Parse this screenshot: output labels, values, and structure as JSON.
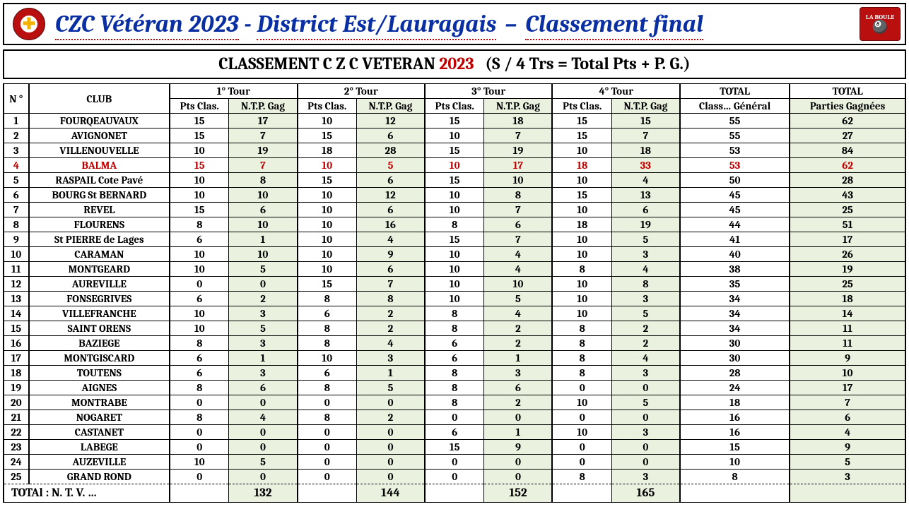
{
  "header": {
    "title_seg1": "CZC Vétéran 2023",
    "title_seg2": "District Est/Lauragais",
    "title_seg3": "Classement final",
    "dash": "–"
  },
  "banner": {
    "prefix": "CLASSEMENT  C Z C  VETERAN",
    "year": "2023",
    "suffix": "(S / 4 Trs  = Total  Pts  + P. G.)"
  },
  "columns": {
    "n": "N °",
    "club": "CLUB",
    "tours": [
      "1° Tour",
      "2° Tour",
      "3° Tour",
      "4° Tour"
    ],
    "pts": "Pts  Clas.",
    "ntp": "N.T.P. Gag",
    "total_class": "TOTAL",
    "total_class_sub": "Class…  Général",
    "total_pg": "TOTAL",
    "total_pg_sub": "Parties  Gagnées"
  },
  "rows": [
    {
      "n": "1",
      "club": "FOURQEAUVAUX",
      "t": [
        [
          15,
          17
        ],
        [
          10,
          12
        ],
        [
          15,
          18
        ],
        [
          15,
          15
        ]
      ],
      "cls": 55,
      "pg": 62
    },
    {
      "n": "2",
      "club": "AVIGNONET",
      "t": [
        [
          15,
          7
        ],
        [
          15,
          6
        ],
        [
          10,
          7
        ],
        [
          15,
          7
        ]
      ],
      "cls": 55,
      "pg": 27
    },
    {
      "n": "3",
      "club": "VILLENOUVELLE",
      "t": [
        [
          10,
          19
        ],
        [
          18,
          28
        ],
        [
          15,
          19
        ],
        [
          10,
          18
        ]
      ],
      "cls": 53,
      "pg": 84
    },
    {
      "n": "4",
      "club": "BALMA",
      "highlight": true,
      "t": [
        [
          15,
          7
        ],
        [
          10,
          5
        ],
        [
          10,
          17
        ],
        [
          18,
          33
        ]
      ],
      "cls": 53,
      "pg": 62
    },
    {
      "n": "5",
      "club": "RASPAIL Cote Pavé",
      "t": [
        [
          10,
          8
        ],
        [
          15,
          6
        ],
        [
          15,
          10
        ],
        [
          10,
          4
        ]
      ],
      "cls": 50,
      "pg": 28
    },
    {
      "n": "6",
      "club": "BOURG St BERNARD",
      "t": [
        [
          10,
          10
        ],
        [
          10,
          12
        ],
        [
          10,
          8
        ],
        [
          15,
          13
        ]
      ],
      "cls": 45,
      "pg": 43
    },
    {
      "n": "7",
      "club": "REVEL",
      "t": [
        [
          15,
          6
        ],
        [
          10,
          6
        ],
        [
          10,
          7
        ],
        [
          10,
          6
        ]
      ],
      "cls": 45,
      "pg": 25
    },
    {
      "n": "8",
      "club": "FLOURENS",
      "t": [
        [
          8,
          10
        ],
        [
          10,
          16
        ],
        [
          8,
          6
        ],
        [
          18,
          19
        ]
      ],
      "cls": 44,
      "pg": 51
    },
    {
      "n": "9",
      "club": "St PIERRE de Lages",
      "t": [
        [
          6,
          1
        ],
        [
          10,
          4
        ],
        [
          15,
          7
        ],
        [
          10,
          5
        ]
      ],
      "cls": 41,
      "pg": 17
    },
    {
      "n": "10",
      "club": "CARAMAN",
      "t": [
        [
          10,
          10
        ],
        [
          10,
          9
        ],
        [
          10,
          4
        ],
        [
          10,
          3
        ]
      ],
      "cls": 40,
      "pg": 26
    },
    {
      "n": "11",
      "club": "MONTGEARD",
      "t": [
        [
          10,
          5
        ],
        [
          10,
          6
        ],
        [
          10,
          4
        ],
        [
          8,
          4
        ]
      ],
      "cls": 38,
      "pg": 19
    },
    {
      "n": "12",
      "club": "AUREVILLE",
      "t": [
        [
          0,
          0
        ],
        [
          15,
          7
        ],
        [
          10,
          10
        ],
        [
          10,
          8
        ]
      ],
      "cls": 35,
      "pg": 25
    },
    {
      "n": "13",
      "club": "FONSEGRIVES",
      "t": [
        [
          6,
          2
        ],
        [
          8,
          8
        ],
        [
          10,
          5
        ],
        [
          10,
          3
        ]
      ],
      "cls": 34,
      "pg": 18
    },
    {
      "n": "14",
      "club": "VILLEFRANCHE",
      "t": [
        [
          10,
          3
        ],
        [
          6,
          2
        ],
        [
          8,
          4
        ],
        [
          10,
          5
        ]
      ],
      "cls": 34,
      "pg": 14
    },
    {
      "n": "15",
      "club": "SAINT  ORENS",
      "t": [
        [
          10,
          5
        ],
        [
          8,
          2
        ],
        [
          8,
          2
        ],
        [
          8,
          2
        ]
      ],
      "cls": 34,
      "pg": 11
    },
    {
      "n": "16",
      "club": "BAZIEGE",
      "t": [
        [
          8,
          3
        ],
        [
          8,
          4
        ],
        [
          6,
          2
        ],
        [
          8,
          2
        ]
      ],
      "cls": 30,
      "pg": 11
    },
    {
      "n": "17",
      "club": "MONTGISCARD",
      "t": [
        [
          6,
          1
        ],
        [
          10,
          3
        ],
        [
          6,
          1
        ],
        [
          8,
          4
        ]
      ],
      "cls": 30,
      "pg": 9
    },
    {
      "n": "18",
      "club": "TOUTENS",
      "t": [
        [
          6,
          3
        ],
        [
          6,
          1
        ],
        [
          8,
          3
        ],
        [
          8,
          3
        ]
      ],
      "cls": 28,
      "pg": 10
    },
    {
      "n": "19",
      "club": "AIGNES",
      "t": [
        [
          8,
          6
        ],
        [
          8,
          5
        ],
        [
          8,
          6
        ],
        [
          0,
          0
        ]
      ],
      "cls": 24,
      "pg": 17
    },
    {
      "n": "20",
      "club": "MONTRABE",
      "t": [
        [
          0,
          0
        ],
        [
          0,
          0
        ],
        [
          8,
          2
        ],
        [
          10,
          5
        ]
      ],
      "cls": 18,
      "pg": 7
    },
    {
      "n": "21",
      "club": "NOGARET",
      "t": [
        [
          8,
          4
        ],
        [
          8,
          2
        ],
        [
          0,
          0
        ],
        [
          0,
          0
        ]
      ],
      "cls": 16,
      "pg": 6
    },
    {
      "n": "22",
      "club": "CASTANET",
      "t": [
        [
          0,
          0
        ],
        [
          0,
          0
        ],
        [
          6,
          1
        ],
        [
          10,
          3
        ]
      ],
      "cls": 16,
      "pg": 4
    },
    {
      "n": "23",
      "club": "LABEGE",
      "t": [
        [
          0,
          0
        ],
        [
          0,
          0
        ],
        [
          15,
          9
        ],
        [
          0,
          0
        ]
      ],
      "cls": 15,
      "pg": 9
    },
    {
      "n": "24",
      "club": "AUZEVILLE",
      "t": [
        [
          10,
          5
        ],
        [
          0,
          0
        ],
        [
          0,
          0
        ],
        [
          0,
          0
        ]
      ],
      "cls": 10,
      "pg": 5
    },
    {
      "n": "25",
      "club": "GRAND ROND",
      "t": [
        [
          0,
          0
        ],
        [
          0,
          0
        ],
        [
          0,
          0
        ],
        [
          8,
          3
        ]
      ],
      "cls": 8,
      "pg": 3
    }
  ],
  "totals": {
    "label": "TOTAl  :  N.  T.  V.  …",
    "ntp": [
      132,
      144,
      152,
      165
    ]
  },
  "style": {
    "title_color": "#0a2fa2",
    "underline_color": "#c00000",
    "green_bg": "#ebf1df",
    "highlight_color": "#c00000",
    "font_family": "Cambria, Georgia, serif"
  }
}
